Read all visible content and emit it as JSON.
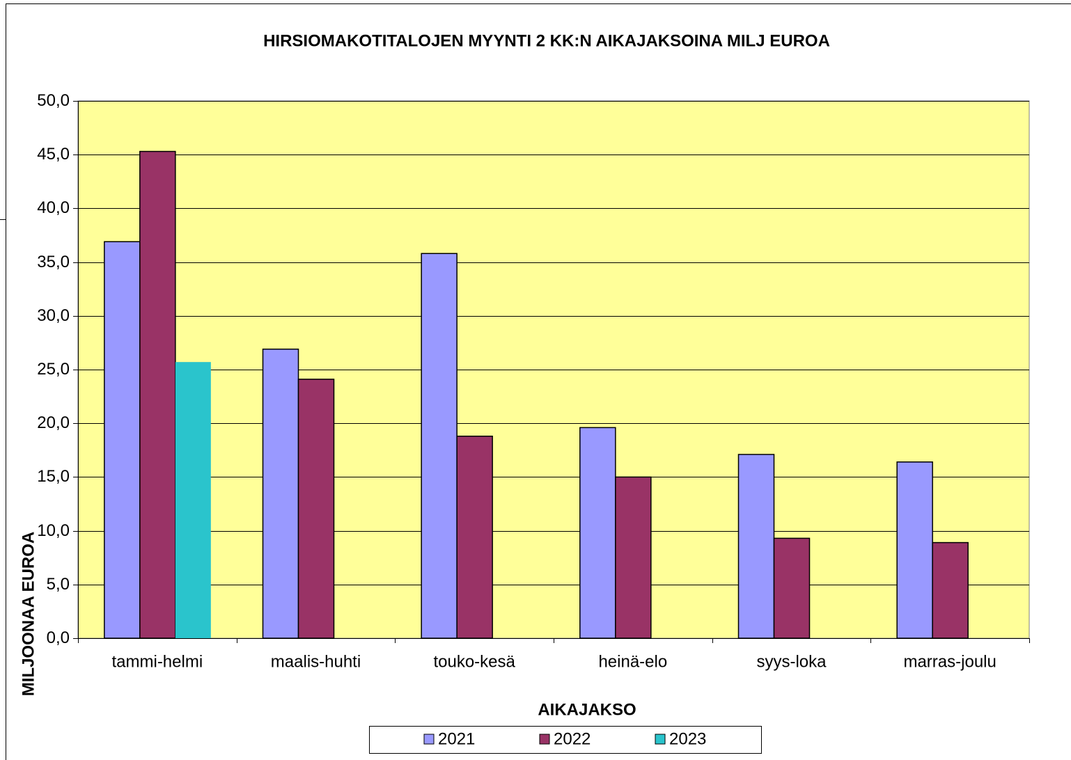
{
  "chart_data": {
    "type": "bar",
    "title": "HIRSIOMAKOTITALOJEN MYYNTI 2 KK:N AIKAJAKSOINA MILJ EUROA",
    "x_label": "AIKAJAKSO",
    "y_label": "MILJOONAA EUROA",
    "categories": [
      "tammi-helmi",
      "maalis-huhti",
      "touko-kesä",
      "heinä-elo",
      "syys-loka",
      "marras-joulu"
    ],
    "series": [
      {
        "name": "2021",
        "color": "#9999ff",
        "values": [
          36.9,
          26.9,
          35.8,
          19.6,
          17.1,
          16.4
        ]
      },
      {
        "name": "2022",
        "color": "#993366",
        "values": [
          45.3,
          24.1,
          18.8,
          15.0,
          9.3,
          8.9
        ]
      },
      {
        "name": "2023",
        "color": "#2ac4cc",
        "values": [
          25.7,
          null,
          null,
          null,
          null,
          null
        ]
      }
    ],
    "ylim": [
      0,
      50
    ],
    "yticks": [
      {
        "value": 0,
        "label": "0,0"
      },
      {
        "value": 5,
        "label": "5,0"
      },
      {
        "value": 10,
        "label": "10,0"
      },
      {
        "value": 15,
        "label": "15,0"
      },
      {
        "value": 20,
        "label": "20,0"
      },
      {
        "value": 25,
        "label": "25,0"
      },
      {
        "value": 30,
        "label": "30,0"
      },
      {
        "value": 35,
        "label": "35,0"
      },
      {
        "value": 40,
        "label": "40,0"
      },
      {
        "value": 45,
        "label": "45,0"
      },
      {
        "value": 50,
        "label": "50,0"
      }
    ],
    "grid": true,
    "plot_background": "#ffff99"
  }
}
